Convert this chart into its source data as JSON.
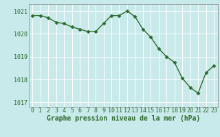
{
  "x": [
    0,
    1,
    2,
    3,
    4,
    5,
    6,
    7,
    8,
    9,
    10,
    11,
    12,
    13,
    14,
    15,
    16,
    17,
    18,
    19,
    20,
    21,
    22,
    23
  ],
  "y": [
    1020.8,
    1020.8,
    1020.7,
    1020.5,
    1020.45,
    1020.3,
    1020.2,
    1020.1,
    1020.1,
    1020.45,
    1020.8,
    1020.8,
    1021.0,
    1020.75,
    1020.2,
    1019.85,
    1019.35,
    1019.0,
    1018.75,
    1018.05,
    1017.65,
    1017.4,
    1018.3,
    1018.6
  ],
  "line_color": "#2d6a2d",
  "marker": "D",
  "marker_size": 2.5,
  "background_color": "#c8eaea",
  "grid_color": "#ffffff",
  "text_color": "#2d6a2d",
  "xlabel": "Graphe pression niveau de la mer (hPa)",
  "ylim": [
    1016.8,
    1021.3
  ],
  "yticks": [
    1017,
    1018,
    1019,
    1020,
    1021
  ],
  "xticks": [
    0,
    1,
    2,
    3,
    4,
    5,
    6,
    7,
    8,
    9,
    10,
    11,
    12,
    13,
    14,
    15,
    16,
    17,
    18,
    19,
    20,
    21,
    22,
    23
  ],
  "xlabel_fontsize": 7,
  "tick_fontsize": 6,
  "line_width": 1.0
}
